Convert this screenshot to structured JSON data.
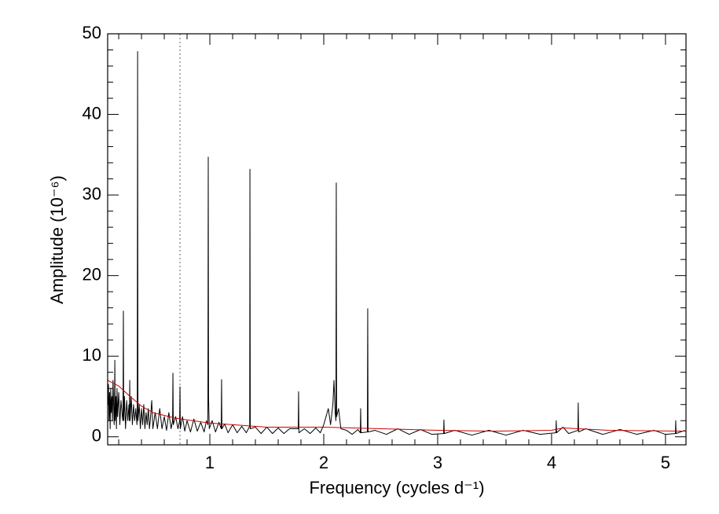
{
  "chart_data": {
    "type": "line",
    "xlabel": "Frequency (cycles d⁻¹)",
    "ylabel": "Amplitude (10⁻⁶)",
    "xlim": [
      0.103,
      5.18
    ],
    "ylim": [
      -1,
      50
    ],
    "xticks": [
      1,
      2,
      3,
      4,
      5
    ],
    "yticks": [
      0,
      10,
      20,
      30,
      40,
      50
    ],
    "xminor_ticks": [
      0.2,
      0.4,
      0.6,
      0.8,
      1.2,
      1.4,
      1.6,
      1.8,
      2.2,
      2.4,
      2.6,
      2.8,
      3.2,
      3.4,
      3.6,
      3.8,
      4.2,
      4.4,
      4.6,
      4.8,
      5.2
    ],
    "yminor_ticks": [
      2,
      4,
      6,
      8,
      12,
      14,
      16,
      18,
      22,
      24,
      26,
      28,
      32,
      34,
      36,
      38,
      42,
      44,
      46,
      48
    ],
    "vline": {
      "x": 0.738,
      "color": "#999999"
    },
    "series": [
      {
        "name": "spectrum",
        "color": "#000000",
        "x": [
          0.105,
          0.11,
          0.115,
          0.12,
          0.125,
          0.13,
          0.135,
          0.14,
          0.145,
          0.15,
          0.16,
          0.163,
          0.166,
          0.169,
          0.175,
          0.18,
          0.185,
          0.19,
          0.2,
          0.21,
          0.22,
          0.235,
          0.238,
          0.241,
          0.244,
          0.25,
          0.26,
          0.27,
          0.28,
          0.29,
          0.294,
          0.297,
          0.3,
          0.31,
          0.32,
          0.33,
          0.34,
          0.35,
          0.36,
          0.363,
          0.366,
          0.369,
          0.38,
          0.39,
          0.4,
          0.41,
          0.42,
          0.43,
          0.44,
          0.45,
          0.46,
          0.47,
          0.48,
          0.49,
          0.5,
          0.52,
          0.54,
          0.56,
          0.58,
          0.6,
          0.62,
          0.64,
          0.66,
          0.673,
          0.676,
          0.679,
          0.7,
          0.72,
          0.735,
          0.738,
          0.741,
          0.76,
          0.78,
          0.8,
          0.83,
          0.86,
          0.89,
          0.92,
          0.95,
          0.97,
          0.983,
          0.986,
          0.989,
          0.995,
          1.02,
          1.05,
          1.08,
          1.1,
          1.103,
          1.106,
          1.13,
          1.16,
          1.2,
          1.24,
          1.28,
          1.32,
          1.35,
          1.352,
          1.355,
          1.4,
          1.45,
          1.5,
          1.55,
          1.6,
          1.65,
          1.7,
          1.776,
          1.779,
          1.782,
          1.83,
          1.88,
          1.93,
          1.97,
          2.0,
          2.04,
          2.06,
          2.08,
          2.09,
          2.1,
          2.107,
          2.11,
          2.113,
          2.13,
          2.15,
          2.2,
          2.25,
          2.3,
          2.321,
          2.324,
          2.327,
          2.383,
          2.386,
          2.389,
          2.45,
          2.55,
          2.65,
          2.75,
          2.85,
          2.95,
          3.052,
          3.055,
          3.058,
          3.15,
          3.3,
          3.45,
          3.6,
          3.75,
          3.9,
          4.038,
          4.041,
          4.044,
          4.1,
          4.15,
          4.231,
          4.234,
          4.237,
          4.3,
          4.45,
          4.6,
          4.75,
          4.9,
          5.0,
          5.087,
          5.09,
          5.093,
          5.17
        ],
        "values": [
          4,
          6.5,
          2,
          5.5,
          1,
          6,
          3,
          5,
          2,
          7,
          1.5,
          3,
          9.5,
          2,
          5,
          1,
          6,
          2.5,
          5.5,
          1.5,
          4.5,
          2,
          3,
          15.6,
          2,
          5,
          1,
          4.5,
          2,
          4,
          2,
          7,
          2,
          5,
          1.5,
          4,
          2,
          3.5,
          1.5,
          3,
          47.8,
          2,
          4,
          1,
          3.5,
          1.5,
          4,
          1,
          3,
          1.5,
          3.5,
          1,
          2.5,
          4.5,
          1,
          3,
          1,
          3.5,
          1,
          2.5,
          0.8,
          3,
          1,
          2,
          7.9,
          1.5,
          2.5,
          1,
          2,
          6.2,
          1,
          2.5,
          0.7,
          2,
          0.6,
          2.2,
          0.7,
          1.8,
          0.6,
          2,
          1.5,
          34.7,
          4.8,
          1,
          2,
          0.6,
          1.8,
          1,
          7.1,
          1,
          1.6,
          0.5,
          1.5,
          0.5,
          1.3,
          0.5,
          1.3,
          33.2,
          1,
          1.2,
          0.4,
          1.2,
          0.4,
          1.1,
          0.4,
          1,
          1,
          5.6,
          0.5,
          1,
          0.4,
          1.1,
          0.5,
          1.5,
          3.5,
          1.5,
          4,
          7,
          3,
          2,
          31.5,
          2.5,
          3.5,
          1,
          0.8,
          0.3,
          0.9,
          0.5,
          3.5,
          0.5,
          0.6,
          15.9,
          0.6,
          0.8,
          0.3,
          1,
          0.3,
          0.9,
          0.3,
          0.4,
          2.1,
          0.4,
          0.8,
          0.2,
          0.8,
          0.2,
          0.8,
          0.3,
          0.5,
          2,
          0.5,
          1.2,
          0.4,
          0.8,
          4.2,
          0.6,
          1,
          0.3,
          0.9,
          0.3,
          0.8,
          0.3,
          0.4,
          2,
          0.4,
          0.8
        ]
      },
      {
        "name": "noise",
        "color": "#cc0000",
        "x": [
          0.103,
          0.2,
          0.3,
          0.4,
          0.5,
          0.7,
          1.0,
          1.5,
          2.0,
          2.5,
          3.0,
          3.5,
          4.0,
          4.1,
          4.5,
          5.18
        ],
        "values": [
          7,
          6.3,
          5,
          3.8,
          3,
          2.3,
          1.7,
          1.2,
          1.2,
          1.0,
          0.8,
          0.7,
          0.8,
          1.1,
          0.8,
          0.7
        ]
      }
    ]
  }
}
